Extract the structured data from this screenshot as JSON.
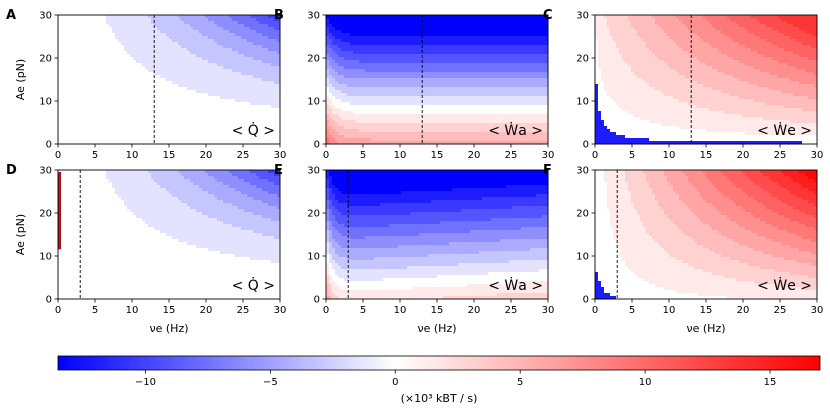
{
  "chart_data": {
    "type": "heatmap",
    "kind": "filled-contour",
    "panel_labels": [
      "A",
      "B",
      "C",
      "D",
      "E",
      "F"
    ],
    "rows": [
      {
        "marker_x": 13,
        "panels": [
          {
            "label": "A",
            "quantity": "< Q̇ >",
            "fn": "Q",
            "red_edge": false
          },
          {
            "label": "B",
            "quantity": "< Ẇa >",
            "fn": "Wa",
            "red_edge": false
          },
          {
            "label": "C",
            "quantity": "< Ẇe >",
            "fn": "We",
            "red_edge": false
          }
        ]
      },
      {
        "marker_x": 3,
        "panels": [
          {
            "label": "D",
            "quantity": "< Q̇ >",
            "fn": "Q",
            "red_edge": true
          },
          {
            "label": "E",
            "quantity": "< Ẇa >",
            "fn": "Wa",
            "red_edge": false
          },
          {
            "label": "F",
            "quantity": "< Ẇe >",
            "fn": "We",
            "red_edge": false
          }
        ]
      }
    ],
    "x_axis": {
      "label": "νe (Hz)",
      "range": [
        0,
        30
      ],
      "ticks": [
        "0",
        "5",
        "10",
        "15",
        "20",
        "25",
        "30"
      ]
    },
    "y_axis": {
      "label": "Ae (pN)",
      "range": [
        0,
        30
      ],
      "ticks": [
        "0",
        "10",
        "20",
        "30"
      ]
    },
    "colorbar": {
      "label": "(×10³ kBT / s)",
      "range": [
        -13.5,
        17
      ],
      "ticks": [
        -10,
        -5,
        0,
        5,
        10,
        15
      ],
      "tick_labels": [
        "−10",
        "−5",
        "0",
        "5",
        "10",
        "15"
      ],
      "colormap": "bwr",
      "colors": {
        "low": "#0000ff",
        "mid": "#ffffff",
        "high": "#ff0000"
      }
    }
  }
}
